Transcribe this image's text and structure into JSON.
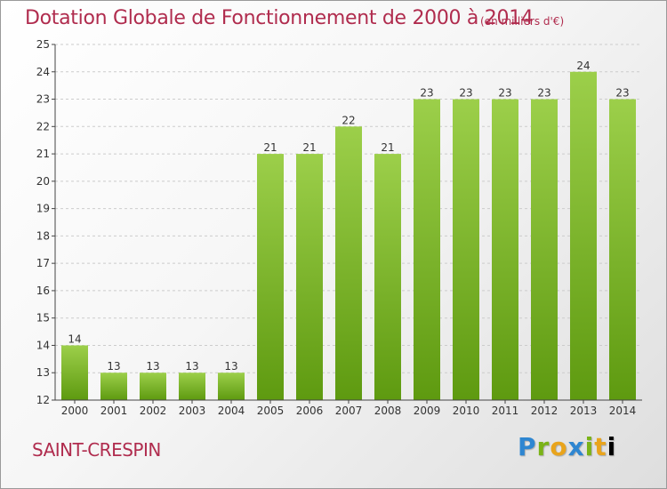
{
  "header": {
    "title": "Dotation Globale de Fonctionnement de 2000 à 2014",
    "units": "(en milliers d'€)"
  },
  "footer": {
    "town": "SAINT-CRESPIN",
    "logo_letters": [
      "P",
      "r",
      "o",
      "x",
      "i",
      "t",
      "i"
    ]
  },
  "colors": {
    "title": "#b02c4e",
    "bar_top": "#9ccf4a",
    "bar_bottom": "#5e9a10",
    "grid": "#cccccc"
  },
  "chart_data": {
    "type": "bar",
    "title": "Dotation Globale de Fonctionnement de 2000 à 2014",
    "subtitle": "(en milliers d'€)",
    "xlabel": "",
    "ylabel": "",
    "categories": [
      "2000",
      "2001",
      "2002",
      "2003",
      "2004",
      "2005",
      "2006",
      "2007",
      "2008",
      "2009",
      "2010",
      "2011",
      "2012",
      "2013",
      "2014"
    ],
    "values": [
      14,
      13,
      13,
      13,
      13,
      21,
      21,
      22,
      21,
      23,
      23,
      23,
      23,
      24,
      23
    ],
    "data_labels": [
      "14",
      "13",
      "13",
      "13",
      "13",
      "21",
      "21",
      "22",
      "21",
      "23",
      "23",
      "23",
      "23",
      "24",
      "23"
    ],
    "ylim": [
      12,
      25
    ],
    "yticks": [
      12,
      13,
      14,
      15,
      16,
      17,
      18,
      19,
      20,
      21,
      22,
      23,
      24,
      25
    ],
    "grid": "horizontal dashed",
    "legend": "none"
  }
}
